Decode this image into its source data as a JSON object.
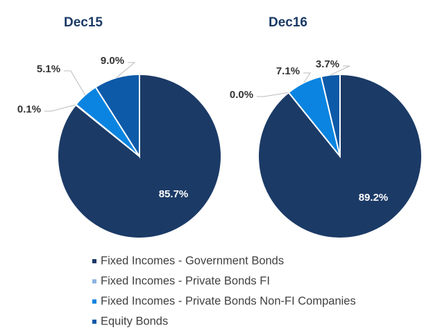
{
  "chart_data": [
    {
      "type": "pie",
      "title": "Dec15",
      "categories": [
        "Fixed Incomes - Government Bonds",
        "Fixed Incomes - Private Bonds FI",
        "Fixed Incomes - Private Bonds Non-FI Companies",
        "Equity Bonds"
      ],
      "values": [
        85.7,
        0.1,
        5.1,
        9.0
      ],
      "value_labels": [
        "85.7%",
        "0.1%",
        "5.1%",
        "9.0%"
      ],
      "colors": [
        "#1b3a66",
        "#8fb4e0",
        "#0a84e0",
        "#0d5aa8"
      ]
    },
    {
      "type": "pie",
      "title": "Dec16",
      "categories": [
        "Fixed Incomes - Government Bonds",
        "Fixed Incomes - Private Bonds FI",
        "Fixed Incomes - Private Bonds Non-FI Companies",
        "Equity Bonds"
      ],
      "values": [
        89.2,
        0.0,
        7.1,
        3.7
      ],
      "value_labels": [
        "89.2%",
        "0.0%",
        "7.1%",
        "3.7%"
      ],
      "colors": [
        "#1b3a66",
        "#8fb4e0",
        "#0a84e0",
        "#0d5aa8"
      ]
    }
  ]
}
